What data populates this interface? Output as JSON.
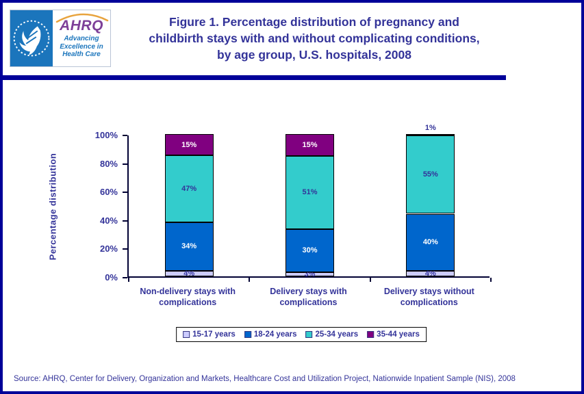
{
  "header": {
    "logo": {
      "org": "AHRQ",
      "tagline": [
        "Advancing",
        "Excellence in",
        "Health Care"
      ],
      "seal_name": "hhs-eagle-seal"
    },
    "title_lines": [
      "Figure 1. Percentage distribution of pregnancy and",
      "childbirth stays with and without complicating conditions,",
      "by age group, U.S. hospitals, 2008"
    ]
  },
  "chart": {
    "ylabel": "Percentage distribution",
    "ytick_labels": [
      "0%",
      "20%",
      "40%",
      "60%",
      "80%",
      "100%"
    ],
    "categories_lines": [
      [
        "Non-delivery stays with",
        "complications"
      ],
      [
        "Delivery stays with",
        "complications"
      ],
      [
        "Delivery stays without",
        "complications"
      ]
    ]
  },
  "chart_data": {
    "type": "bar",
    "stacked": true,
    "title": "Figure 1. Percentage distribution of pregnancy and childbirth stays with and without complicating conditions, by age group, U.S. hospitals, 2008",
    "xlabel": "",
    "ylabel": "Percentage distribution",
    "ylim": [
      0,
      100
    ],
    "yticks": [
      0,
      20,
      40,
      60,
      80,
      100
    ],
    "grid": false,
    "legend_position": "bottom",
    "value_suffix": "%",
    "categories": [
      "Non-delivery stays with complications",
      "Delivery stays with complications",
      "Delivery stays without complications"
    ],
    "series": [
      {
        "name": "15-17 years",
        "color": "#CCCCFF",
        "label_color": "#333399",
        "values": [
          4,
          3,
          4
        ]
      },
      {
        "name": "18-24 years",
        "color": "#0066CC",
        "label_color": "#FFFFFF",
        "values": [
          34,
          30,
          40
        ]
      },
      {
        "name": "25-34 years",
        "color": "#33CCCC",
        "label_color": "#333399",
        "values": [
          47,
          51,
          55
        ]
      },
      {
        "name": "35-44 years",
        "color": "#800080",
        "label_color": "#FFFFFF",
        "values": [
          15,
          15,
          1
        ]
      }
    ]
  },
  "source": "Source: AHRQ,  Center for Delivery, Organization and Markets, Healthcare Cost and Utilization Project, Nationwide Inpatient Sample (NIS), 2008",
  "colors": {
    "frame_navy": "#000099",
    "text_navy": "#333399",
    "logo_blue": "#1B75BC",
    "ahrq_purple": "#7D3F98",
    "arc_orange": "#E8A33D"
  }
}
